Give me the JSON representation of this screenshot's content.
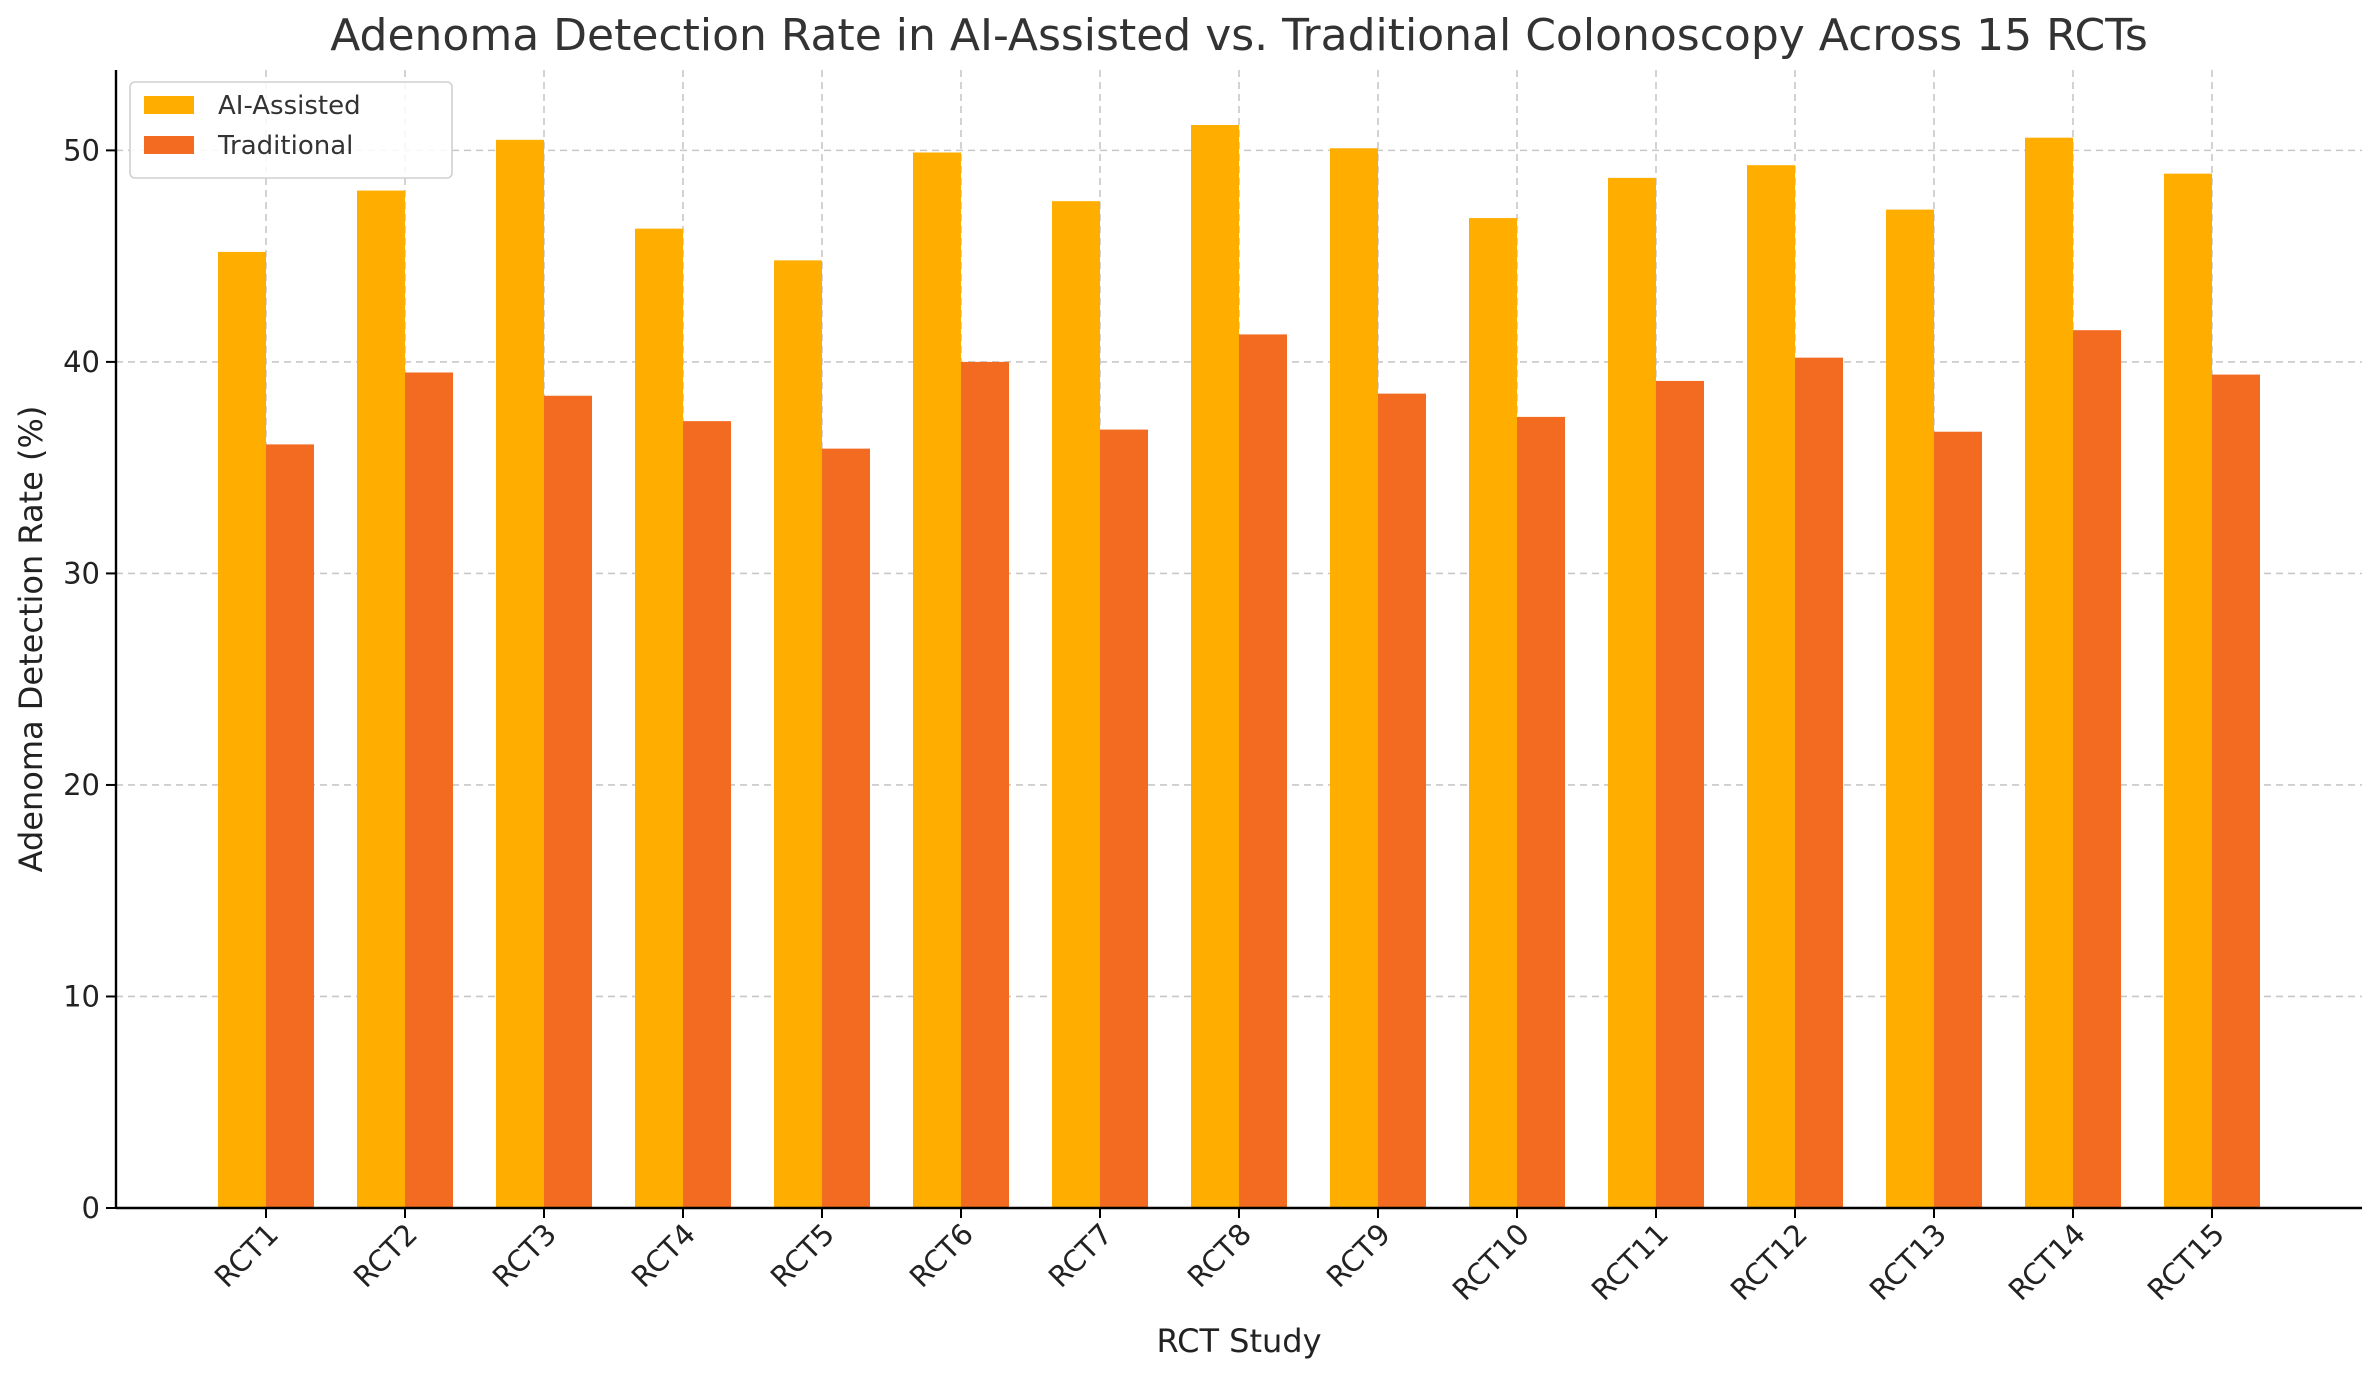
{
  "chart_data": {
    "type": "bar",
    "title": "Adenoma Detection Rate in AI-Assisted vs. Traditional Colonoscopy Across 15 RCTs",
    "xlabel": "RCT Study",
    "ylabel": "Adenoma Detection Rate (%)",
    "categories": [
      "RCT1",
      "RCT2",
      "RCT3",
      "RCT4",
      "RCT5",
      "RCT6",
      "RCT7",
      "RCT8",
      "RCT9",
      "RCT10",
      "RCT11",
      "RCT12",
      "RCT13",
      "RCT14",
      "RCT15"
    ],
    "series": [
      {
        "name": "AI-Assisted",
        "color": "#FFAE00",
        "values": [
          45.2,
          48.1,
          50.5,
          46.3,
          44.8,
          49.9,
          47.6,
          51.2,
          50.1,
          46.8,
          48.7,
          49.3,
          47.2,
          50.6,
          48.9
        ]
      },
      {
        "name": "Traditional",
        "color": "#F26B21",
        "values": [
          36.1,
          39.5,
          38.4,
          37.2,
          35.9,
          40.0,
          36.8,
          41.3,
          38.5,
          37.4,
          39.1,
          40.2,
          36.7,
          41.5,
          39.4
        ]
      }
    ],
    "ylim": [
      0,
      53.8
    ],
    "yticks": [
      0,
      10,
      20,
      30,
      40,
      50
    ],
    "grid": true,
    "legend_position": "top-left"
  }
}
